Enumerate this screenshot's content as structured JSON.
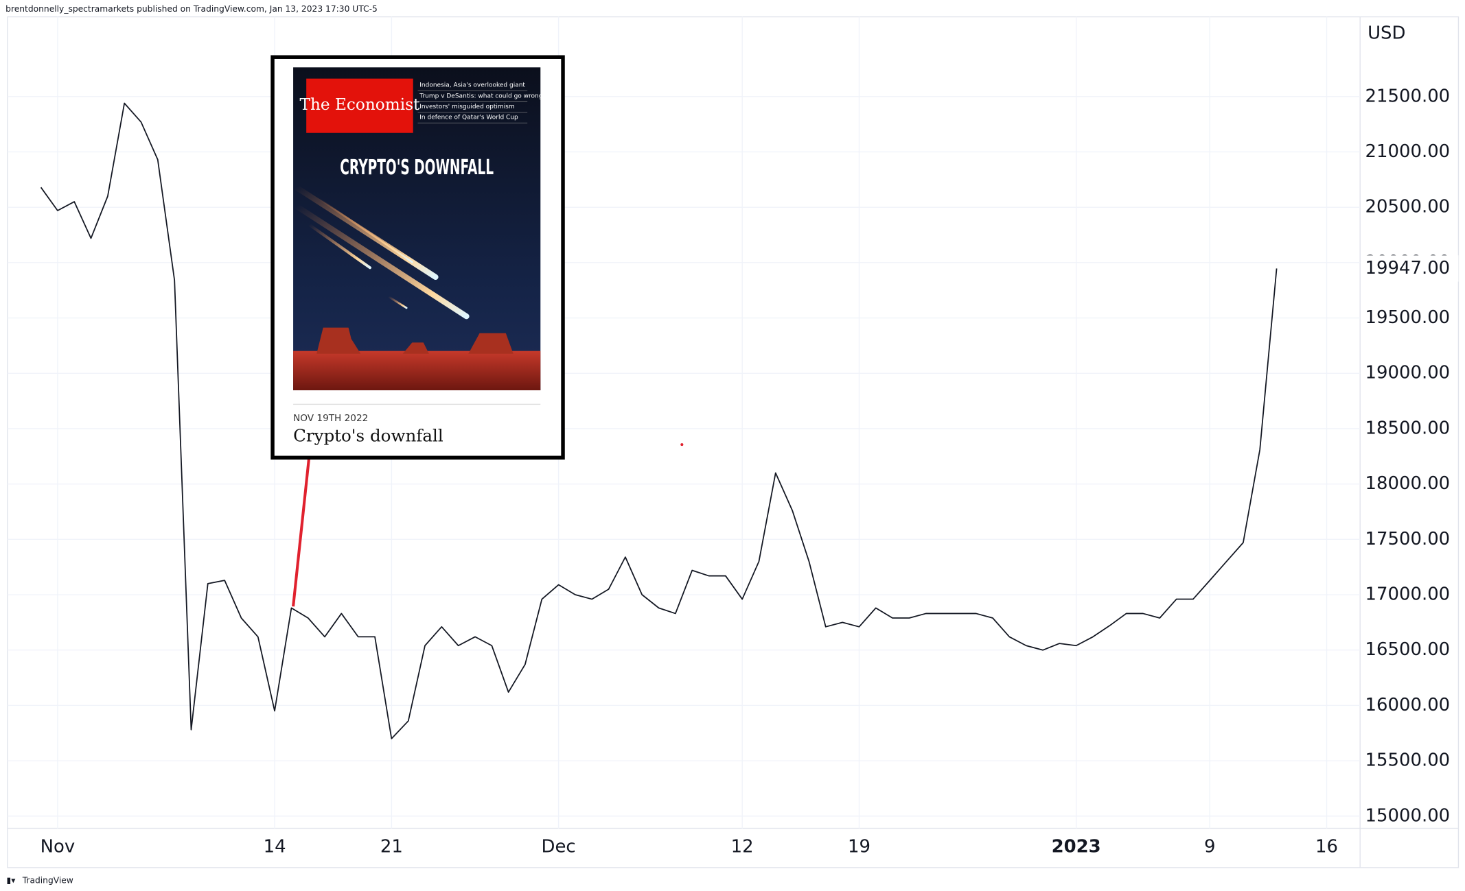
{
  "header": "brentdonnelly_spectramarkets published on TradingView.com, Jan 13, 2023 17:30 UTC-5",
  "footer": "TradingView",
  "cover": {
    "masthead": "The Economist",
    "headlines": [
      "Indonesia, Asia's overlooked giant",
      "Trump v DeSantis: what could go wrong?",
      "Investors' misguided optimism",
      "In defence of Qatar's World Cup"
    ],
    "cover_title": "CRYPTO'S DOWNFALL",
    "date": "NOV 19TH 2022",
    "caption": "Crypto's downfall"
  },
  "chart_data": {
    "type": "line",
    "currency": "USD",
    "color": "#131722",
    "grid": true,
    "x": [
      "2022-10-31",
      "2022-11-01",
      "2022-11-02",
      "2022-11-03",
      "2022-11-04",
      "2022-11-05",
      "2022-11-06",
      "2022-11-07",
      "2022-11-08",
      "2022-11-09",
      "2022-11-10",
      "2022-11-11",
      "2022-11-12",
      "2022-11-13",
      "2022-11-14",
      "2022-11-15",
      "2022-11-16",
      "2022-11-17",
      "2022-11-18",
      "2022-11-19",
      "2022-11-20",
      "2022-11-21",
      "2022-11-22",
      "2022-11-23",
      "2022-11-24",
      "2022-11-25",
      "2022-11-26",
      "2022-11-27",
      "2022-11-28",
      "2022-11-29",
      "2022-11-30",
      "2022-12-01",
      "2022-12-02",
      "2022-12-03",
      "2022-12-04",
      "2022-12-05",
      "2022-12-06",
      "2022-12-07",
      "2022-12-08",
      "2022-12-09",
      "2022-12-10",
      "2022-12-11",
      "2022-12-12",
      "2022-12-13",
      "2022-12-14",
      "2022-12-15",
      "2022-12-16",
      "2022-12-17",
      "2022-12-18",
      "2022-12-19",
      "2022-12-20",
      "2022-12-21",
      "2022-12-22",
      "2022-12-23",
      "2022-12-24",
      "2022-12-25",
      "2022-12-26",
      "2022-12-27",
      "2022-12-28",
      "2022-12-29",
      "2022-12-30",
      "2022-12-31",
      "2023-01-01",
      "2023-01-02",
      "2023-01-03",
      "2023-01-04",
      "2023-01-05",
      "2023-01-06",
      "2023-01-07",
      "2023-01-08",
      "2023-01-09",
      "2023-01-10",
      "2023-01-11",
      "2023-01-12",
      "2023-01-13"
    ],
    "values": [
      20680,
      20470,
      20550,
      20220,
      20600,
      21440,
      21270,
      20930,
      19840,
      15780,
      17100,
      17130,
      16790,
      16620,
      15950,
      16880,
      16790,
      16620,
      16830,
      16620,
      16620,
      15700,
      15860,
      16540,
      16710,
      16540,
      16620,
      16540,
      16120,
      16370,
      16960,
      17090,
      17000,
      16960,
      17050,
      17340,
      17000,
      16880,
      16830,
      17220,
      17170,
      17170,
      16960,
      17300,
      18100,
      17760,
      17300,
      16710,
      16750,
      16710,
      16880,
      16790,
      16790,
      16830,
      16830,
      16830,
      16830,
      16790,
      16620,
      16540,
      16500,
      16560,
      16540,
      16620,
      16720,
      16830,
      16830,
      16790,
      16960,
      16960,
      17130,
      17300,
      17470,
      18310,
      19947
    ],
    "price_tag": {
      "value": 19947,
      "label": "19947.00"
    },
    "xlim": [
      "2022-10-29",
      "2023-01-18"
    ],
    "xticks": [
      {
        "value": "2022-11-01",
        "label": "Nov"
      },
      {
        "value": "2022-11-14",
        "label": "14"
      },
      {
        "value": "2022-11-21",
        "label": "21"
      },
      {
        "value": "2022-12-01",
        "label": "Dec"
      },
      {
        "value": "2022-12-12",
        "label": "12"
      },
      {
        "value": "2022-12-19",
        "label": "19"
      },
      {
        "value": "2023-01-01",
        "label": "2023"
      },
      {
        "value": "2023-01-09",
        "label": "9"
      },
      {
        "value": "2023-01-16",
        "label": "16"
      }
    ],
    "ylim": [
      14890,
      22220
    ],
    "yticks": [
      {
        "value": 15000,
        "label": "15000.00"
      },
      {
        "value": 15500,
        "label": "15500.00"
      },
      {
        "value": 16000,
        "label": "16000.00"
      },
      {
        "value": 16500,
        "label": "16500.00"
      },
      {
        "value": 17000,
        "label": "17000.00"
      },
      {
        "value": 17500,
        "label": "17500.00"
      },
      {
        "value": 18000,
        "label": "18000.00"
      },
      {
        "value": 18500,
        "label": "18500.00"
      },
      {
        "value": 19000,
        "label": "19000.00"
      },
      {
        "value": 19500,
        "label": "19500.00"
      },
      {
        "value": 20000,
        "label": "20000.00"
      },
      {
        "value": 20500,
        "label": "20500.00"
      },
      {
        "value": 21000,
        "label": "21000.00"
      },
      {
        "value": 21500,
        "label": "21500.00"
      }
    ]
  }
}
